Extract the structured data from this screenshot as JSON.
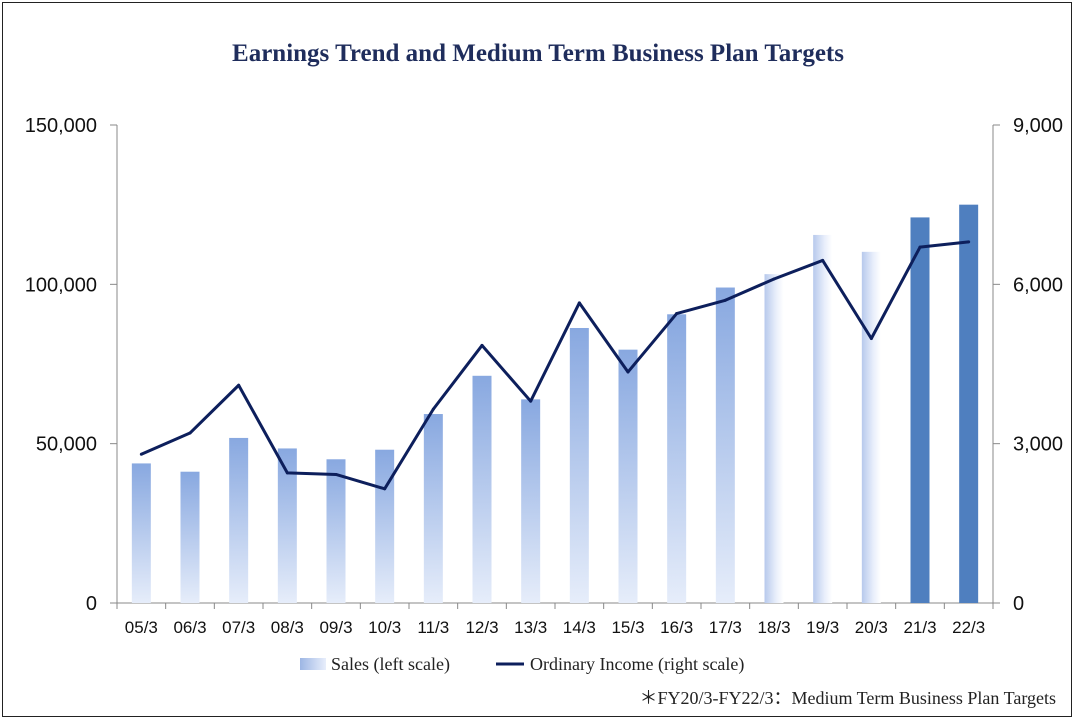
{
  "chart_data": {
    "type": "bar",
    "title": "Earnings Trend and Medium Term Business Plan Targets",
    "note": "＊FY20/3-FY22/3：Medium Term Business Plan Targets",
    "categories": [
      "05/3",
      "06/3",
      "07/3",
      "08/3",
      "09/3",
      "10/3",
      "11/3",
      "12/3",
      "13/3",
      "14/3",
      "15/3",
      "16/3",
      "17/3",
      "18/3",
      "19/3",
      "20/3",
      "21/3",
      "22/3"
    ],
    "ylim_left": [
      0,
      150000
    ],
    "ylim_right": [
      0,
      9000
    ],
    "yticks_left": [
      "0",
      "50,000",
      "100,000",
      "150,000"
    ],
    "yticks_right": [
      "0",
      "3,000",
      "6,000",
      "9,000"
    ],
    "series": [
      {
        "name": "Sales (left scale)",
        "type": "bar",
        "axis": "left",
        "values": [
          43800,
          41200,
          51800,
          48500,
          45100,
          48100,
          59300,
          71300,
          63900,
          86300,
          79500,
          90600,
          99000,
          103200,
          115500,
          110200,
          121000,
          125000
        ],
        "styles": [
          "gradient",
          "gradient",
          "gradient",
          "gradient",
          "gradient",
          "gradient",
          "gradient",
          "gradient",
          "gradient",
          "gradient",
          "gradient",
          "gradient",
          "gradient",
          "gradient-light",
          "gradient-light",
          "gradient-light",
          "solid",
          "solid"
        ]
      },
      {
        "name": "Ordinary Income (right scale)",
        "type": "line",
        "axis": "right",
        "values": [
          2800,
          3200,
          4100,
          2450,
          2420,
          2150,
          3650,
          4850,
          3800,
          5650,
          4350,
          5450,
          5700,
          6100,
          6450,
          4980,
          6700,
          6800
        ]
      }
    ],
    "colors": {
      "bar_dark": "#4f7fbf",
      "bar_light": "#a8bfe6",
      "line": "#0d1f5c",
      "axis": "#888888"
    },
    "grid": false,
    "legend": "bottom"
  }
}
